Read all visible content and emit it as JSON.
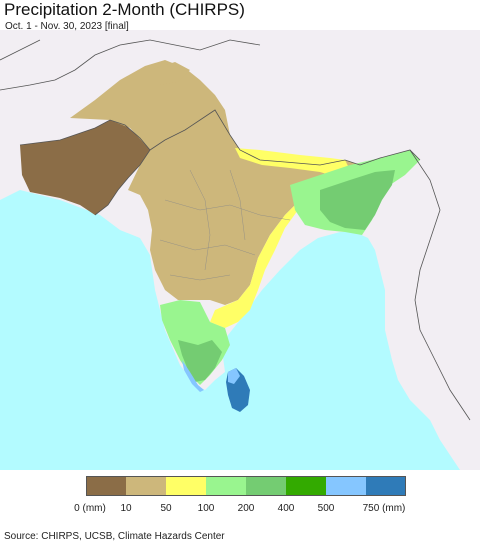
{
  "title": "Precipitation 2-Month (CHIRPS)",
  "subtitle": "Oct. 1 - Nov. 30, 2023 [final]",
  "source": "Source: CHIRPS, UCSB, Climate Hazards Center",
  "legend": {
    "colors": [
      "#8b6d47",
      "#cdb77b",
      "#ffff66",
      "#99f58f",
      "#74cc72",
      "#33aa00",
      "#85c6ff",
      "#2f7bb8"
    ],
    "ticks": [
      "0 (mm)",
      "10",
      "50",
      "100",
      "200",
      "400",
      "500",
      "750 (mm)"
    ]
  },
  "colors": {
    "ocean": "#b3fbff",
    "outside_land": "#f2eef3",
    "border": "#555555"
  }
}
